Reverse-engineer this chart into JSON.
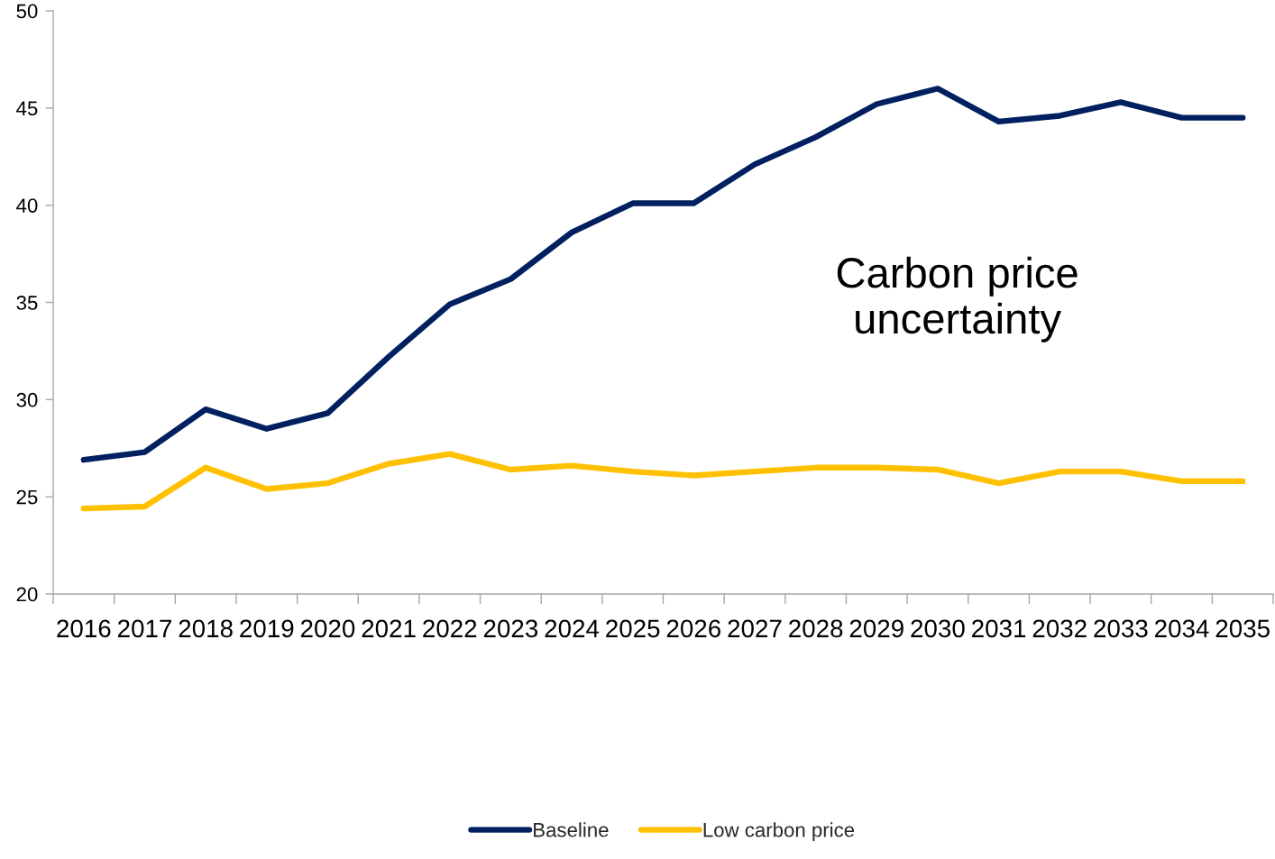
{
  "chart_data": {
    "type": "line",
    "categories": [
      "2016",
      "2017",
      "2018",
      "2019",
      "2020",
      "2021",
      "2022",
      "2023",
      "2024",
      "2025",
      "2026",
      "2027",
      "2028",
      "2029",
      "2030",
      "2031",
      "2032",
      "2033",
      "2034",
      "2035"
    ],
    "series": [
      {
        "name": "Baseline",
        "color": "#002060",
        "values": [
          26.9,
          27.3,
          29.5,
          28.5,
          29.3,
          32.2,
          34.9,
          36.2,
          38.6,
          40.1,
          40.1,
          42.1,
          43.5,
          45.2,
          46.0,
          44.3,
          44.6,
          45.3,
          44.5,
          44.5
        ]
      },
      {
        "name": "Low carbon price",
        "color": "#ffc000",
        "values": [
          24.4,
          24.5,
          26.5,
          25.4,
          25.7,
          26.7,
          27.2,
          26.4,
          26.6,
          26.3,
          26.1,
          26.3,
          26.5,
          26.5,
          26.4,
          25.7,
          26.3,
          26.3,
          25.8,
          25.8
        ]
      }
    ],
    "ylim": [
      20,
      50
    ],
    "yticks": [
      20,
      25,
      30,
      35,
      40,
      45,
      50
    ],
    "annotations": [
      "Carbon price\nuncertainty"
    ],
    "legend": "bottom",
    "grid": false,
    "line_style": "solid"
  }
}
